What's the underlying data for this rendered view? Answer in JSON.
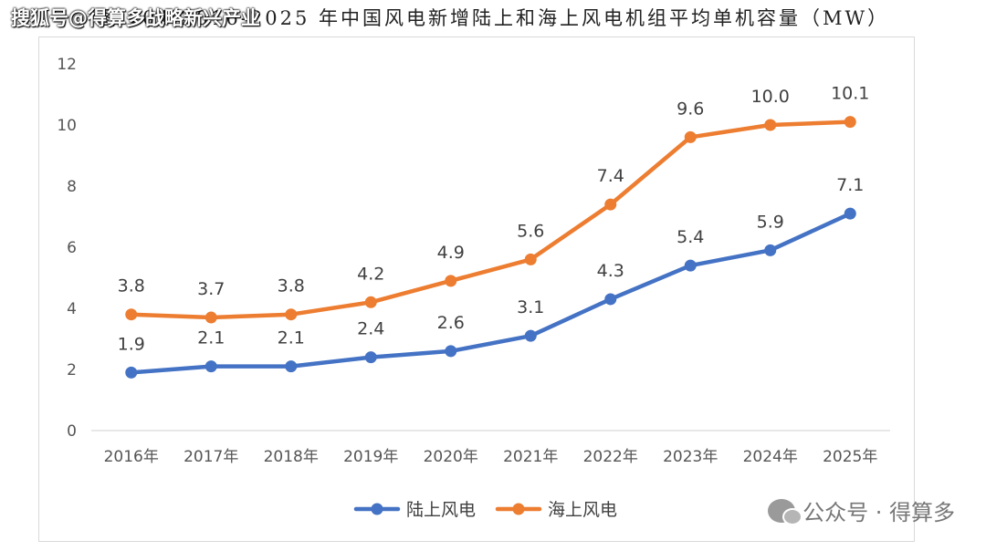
{
  "header": {
    "title": "图 104 2016-2025 年中国风电新增陆上和海上风电机组平均单机容量（MW）",
    "source_tag": "搜狐号@得算多战略新兴产业"
  },
  "watermark": {
    "icon": "wechat-icon",
    "text": "公众号 · 得算多"
  },
  "chart_data": {
    "type": "line",
    "title": "图 104 2016-2025 年中国风电新增陆上和海上风电机组平均单机容量（MW）",
    "xlabel": "",
    "ylabel": "",
    "categories": [
      "2016年",
      "2017年",
      "2018年",
      "2019年",
      "2020年",
      "2021年",
      "2022年",
      "2023年",
      "2024年",
      "2025年"
    ],
    "series": [
      {
        "name": "陆上风电",
        "color": "#4472c4",
        "values": [
          1.9,
          2.1,
          2.1,
          2.4,
          2.6,
          3.1,
          4.3,
          5.4,
          5.9,
          7.1
        ],
        "labels": [
          "1.9",
          "2.1",
          "2.1",
          "2.4",
          "2.6",
          "3.1",
          "4.3",
          "5.4",
          "5.9",
          "7.1"
        ]
      },
      {
        "name": "海上风电",
        "color": "#ed7d31",
        "values": [
          3.8,
          3.7,
          3.8,
          4.2,
          4.9,
          5.6,
          7.4,
          9.6,
          10.0,
          10.1
        ],
        "labels": [
          "3.8",
          "3.7",
          "3.8",
          "4.2",
          "4.9",
          "5.6",
          "7.4",
          "9.6",
          "10.0",
          "10.1"
        ]
      }
    ],
    "ylim": [
      0,
      12
    ],
    "yticks": [
      0,
      2,
      4,
      6,
      8,
      10,
      12
    ],
    "grid": false,
    "legend_position": "bottom"
  }
}
